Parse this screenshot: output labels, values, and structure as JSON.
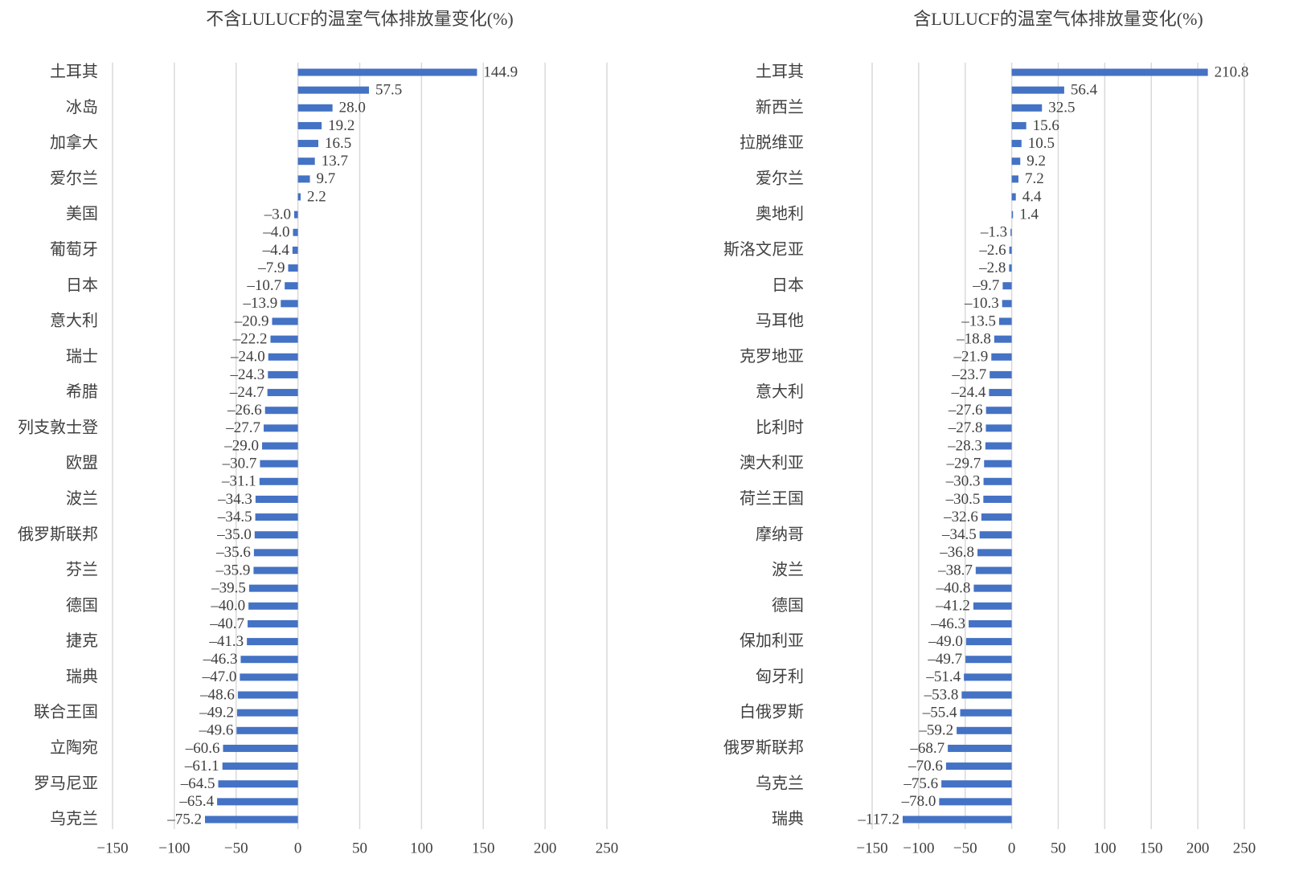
{
  "chart_data": [
    {
      "type": "hbar",
      "title": "不含LULUCF的温室气体排放量变化(%)",
      "color": "#4472c4",
      "grid": true,
      "categories": [
        "土耳其",
        null,
        "冰岛",
        null,
        "加拿大",
        null,
        "爱尔兰",
        null,
        "美国",
        null,
        "葡萄牙",
        null,
        "日本",
        null,
        "意大利",
        null,
        "瑞士",
        null,
        "希腊",
        null,
        "列支敦士登",
        null,
        "欧盟",
        null,
        "波兰",
        null,
        "俄罗斯联邦",
        null,
        "芬兰",
        null,
        "德国",
        null,
        "捷克",
        null,
        "瑞典",
        null,
        "联合王国",
        null,
        "立陶宛",
        null,
        "罗马尼亚",
        null,
        "乌克兰"
      ],
      "values": [
        144.9,
        57.5,
        28.0,
        19.2,
        16.5,
        13.7,
        9.7,
        2.2,
        -3.0,
        -4.0,
        -4.4,
        -7.9,
        -10.7,
        -13.9,
        -20.9,
        -22.2,
        -24.0,
        -24.3,
        -24.7,
        -26.6,
        -27.7,
        -29.0,
        -30.7,
        -31.1,
        -34.3,
        -34.5,
        -35.0,
        -35.6,
        -35.9,
        -39.5,
        -40.0,
        -40.7,
        -41.3,
        -46.3,
        -47.0,
        -48.6,
        -49.2,
        -49.6,
        -60.6,
        -61.1,
        -64.5,
        -65.4,
        -75.2
      ],
      "value_labels": [
        "144.9",
        "57.5",
        "28.0",
        "19.2",
        "16.5",
        "13.7",
        "9.7",
        "2.2",
        "–3.0",
        "–4.0",
        "–4.4",
        "–7.9",
        "–10.7",
        "–13.9",
        "–20.9",
        "–22.2",
        "–24.0",
        "–24.3",
        "–24.7",
        "–26.6",
        "–27.7",
        "–29.0",
        "–30.7",
        "–31.1",
        "–34.3",
        "–34.5",
        "–35.0",
        "–35.6",
        "–35.9",
        "–39.5",
        "–40.0",
        "–40.7",
        "–41.3",
        "–46.3",
        "–47.0",
        "–48.6",
        "–49.2",
        "–49.6",
        "–60.6",
        "–61.1",
        "–64.5",
        "–65.4",
        "–75.2"
      ],
      "xlim": [
        -150,
        250
      ],
      "xticks": [
        {
          "value": -150,
          "label": "−150"
        },
        {
          "value": -100,
          "label": "−100"
        },
        {
          "value": -50,
          "label": "−50"
        },
        0,
        50,
        100,
        150,
        200,
        250
      ]
    },
    {
      "type": "hbar",
      "title": "含LULUCF的温室气体排放量变化(%)",
      "color": "#4472c4",
      "grid": true,
      "categories": [
        "土耳其",
        null,
        "新西兰",
        null,
        "拉脱维亚",
        null,
        "爱尔兰",
        null,
        "奥地利",
        null,
        "斯洛文尼亚",
        null,
        "日本",
        null,
        "马耳他",
        null,
        "克罗地亚",
        null,
        "意大利",
        null,
        "比利时",
        null,
        "澳大利亚",
        null,
        "荷兰王国",
        null,
        "摩纳哥",
        null,
        "波兰",
        null,
        "德国",
        null,
        "保加利亚",
        null,
        "匈牙利",
        null,
        "白俄罗斯",
        null,
        "俄罗斯联邦",
        null,
        "乌克兰",
        null,
        "瑞典"
      ],
      "values": [
        210.8,
        56.4,
        32.5,
        15.6,
        10.5,
        9.2,
        7.2,
        4.4,
        1.4,
        -1.3,
        -2.6,
        -2.8,
        -9.7,
        -10.3,
        -13.5,
        -18.8,
        -21.9,
        -23.7,
        -24.4,
        -27.6,
        -27.8,
        -28.3,
        -29.7,
        -30.3,
        -30.5,
        -32.6,
        -34.5,
        -36.8,
        -38.7,
        -40.8,
        -41.2,
        -46.3,
        -49.0,
        -49.7,
        -51.4,
        -53.8,
        -55.4,
        -59.2,
        -68.7,
        -70.6,
        -75.6,
        -78.0,
        -117.2
      ],
      "value_labels": [
        "210.8",
        "56.4",
        "32.5",
        "15.6",
        "10.5",
        "9.2",
        "7.2",
        "4.4",
        "1.4",
        "–1.3",
        "–2.6",
        "–2.8",
        "–9.7",
        "–10.3",
        "–13.5",
        "–18.8",
        "–21.9",
        "–23.7",
        "–24.4",
        "–27.6",
        "–27.8",
        "–28.3",
        "–29.7",
        "–30.3",
        "–30.5",
        "–32.6",
        "–34.5",
        "–36.8",
        "–38.7",
        "–40.8",
        "–41.2",
        "–46.3",
        "–49.0",
        "–49.7",
        "–51.4",
        "–53.8",
        "–55.4",
        "–59.2",
        "–68.7",
        "–70.6",
        "–75.6",
        "–78.0",
        "–117.2"
      ],
      "xlim": [
        -150,
        250
      ],
      "xticks": [
        {
          "value": -150,
          "label": "−150"
        },
        {
          "value": -100,
          "label": "−100"
        },
        {
          "value": -50,
          "label": "−50"
        },
        0,
        50,
        100,
        150,
        200,
        250
      ]
    }
  ]
}
